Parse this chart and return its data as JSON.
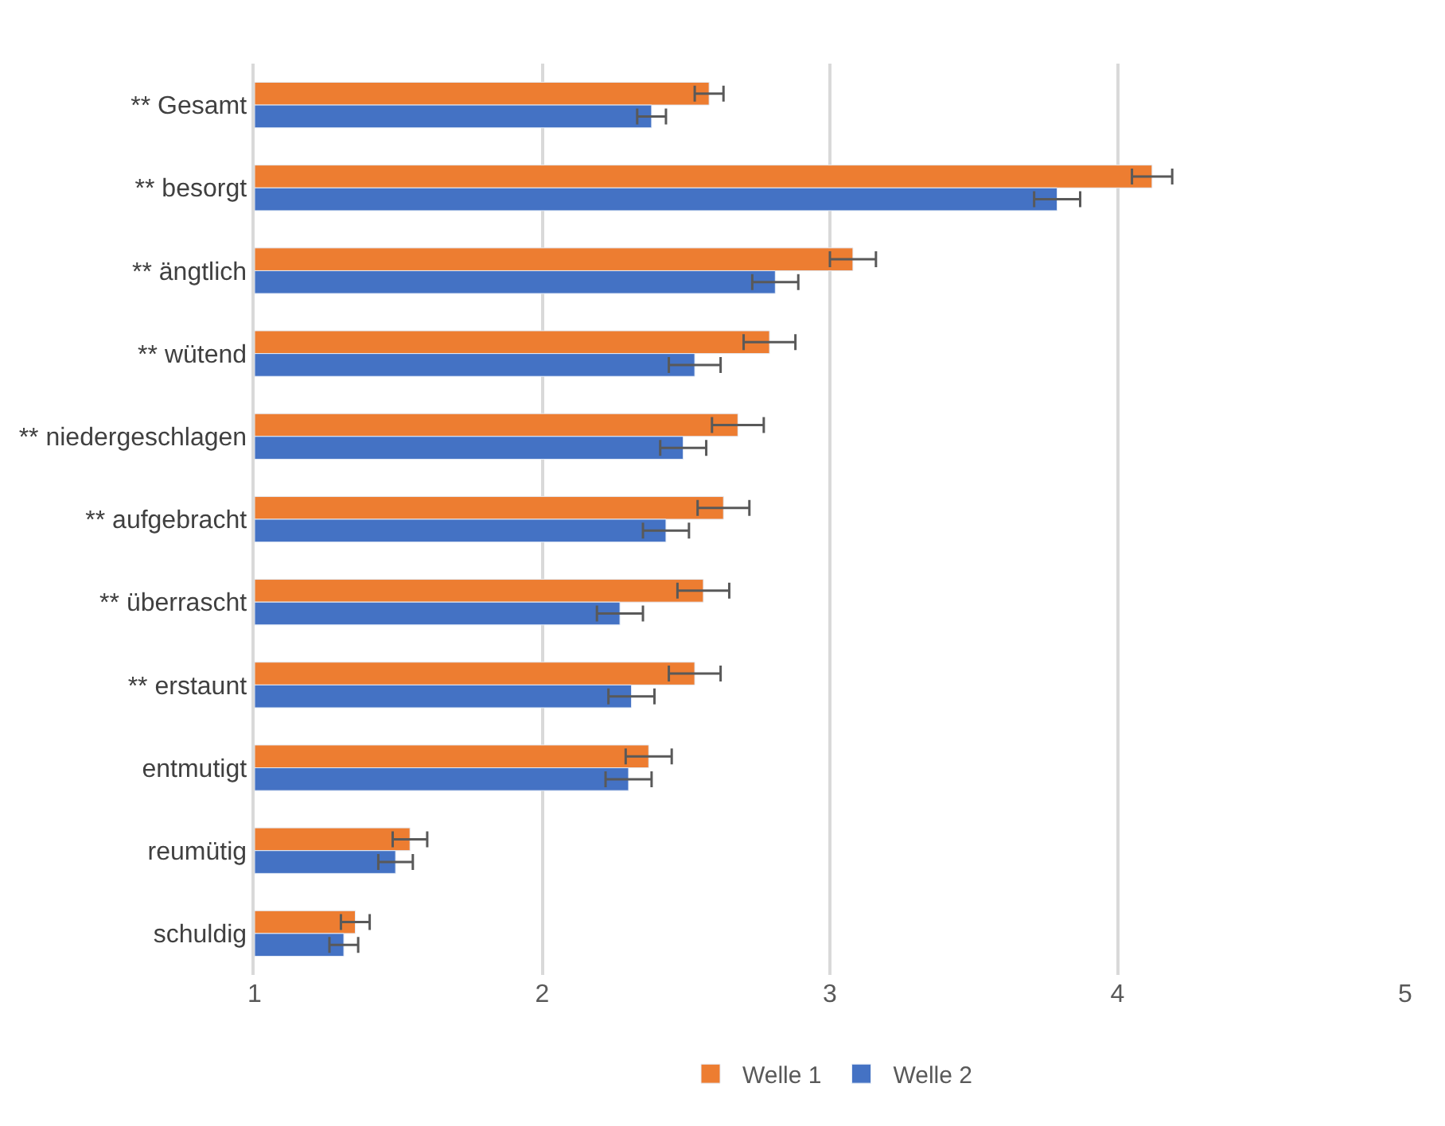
{
  "chart_data": {
    "type": "bar",
    "orientation": "horizontal",
    "categories": [
      "** Gesamt",
      "** besorgt",
      "** ängtlich",
      "** wütend",
      "** niedergeschlagen",
      "** aufgebracht",
      "** überrascht",
      "** erstaunt",
      "entmutigt",
      "reumütig",
      "schuldig"
    ],
    "series": [
      {
        "name": "Welle 1",
        "color": "#ed7d31",
        "values": [
          2.58,
          4.12,
          3.08,
          2.79,
          2.68,
          2.63,
          2.56,
          2.53,
          2.37,
          1.54,
          1.35
        ],
        "errors": [
          0.05,
          0.07,
          0.08,
          0.09,
          0.09,
          0.09,
          0.09,
          0.09,
          0.08,
          0.06,
          0.05
        ]
      },
      {
        "name": "Welle 2",
        "color": "#4472c4",
        "values": [
          2.38,
          3.79,
          2.81,
          2.53,
          2.49,
          2.43,
          2.27,
          2.31,
          2.3,
          1.49,
          1.31
        ],
        "errors": [
          0.05,
          0.08,
          0.08,
          0.09,
          0.08,
          0.08,
          0.08,
          0.08,
          0.08,
          0.06,
          0.05
        ]
      }
    ],
    "xlim": [
      1,
      5
    ],
    "xticks": [
      1,
      2,
      3,
      4,
      5
    ],
    "grid": "x",
    "legend": "bottom"
  }
}
